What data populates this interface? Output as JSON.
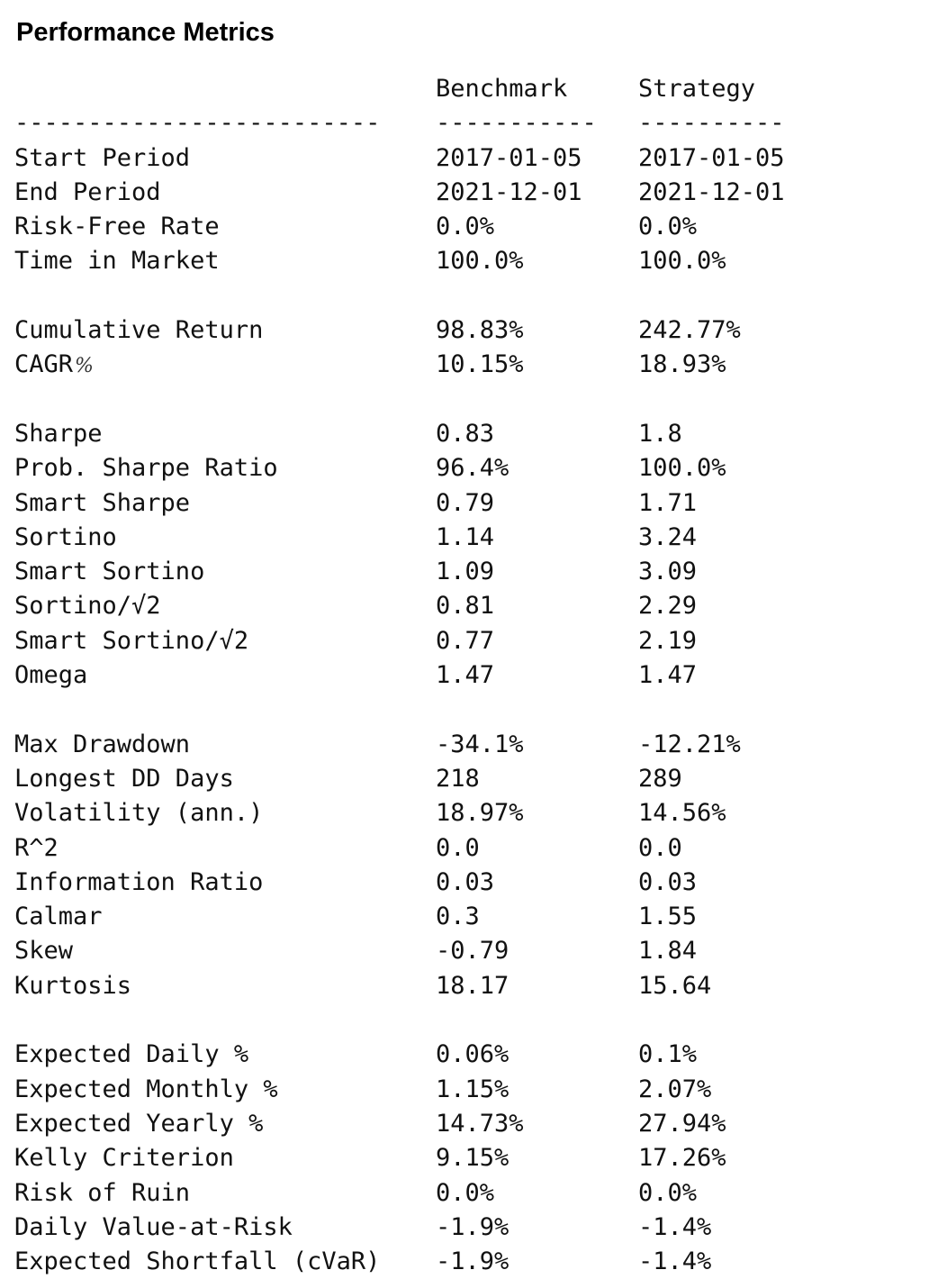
{
  "title": "Performance Metrics",
  "columns": {
    "benchmark": "Benchmark",
    "strategy": "Strategy"
  },
  "separator": {
    "metric": "-------------------------",
    "benchmark": "-----------",
    "strategy": "----------"
  },
  "rows": [
    {
      "metric": "Start Period",
      "benchmark": "2017-01-05",
      "strategy": "2017-01-05"
    },
    {
      "metric": "End Period",
      "benchmark": "2021-12-01",
      "strategy": "2021-12-01"
    },
    {
      "metric": "Risk-Free Rate",
      "benchmark": "0.0%",
      "strategy": "0.0%"
    },
    {
      "metric": "Time in Market",
      "benchmark": "100.0%",
      "strategy": "100.0%"
    },
    {
      "metric": "",
      "benchmark": "",
      "strategy": ""
    },
    {
      "metric": "Cumulative Return",
      "benchmark": "98.83%",
      "strategy": "242.77%"
    },
    {
      "metric": "CAGR",
      "suffix": "%",
      "benchmark": "10.15%",
      "strategy": "18.93%"
    },
    {
      "metric": "",
      "benchmark": "",
      "strategy": ""
    },
    {
      "metric": "Sharpe",
      "benchmark": "0.83",
      "strategy": "1.8"
    },
    {
      "metric": "Prob. Sharpe Ratio",
      "benchmark": "96.4%",
      "strategy": "100.0%"
    },
    {
      "metric": "Smart Sharpe",
      "benchmark": "0.79",
      "strategy": "1.71"
    },
    {
      "metric": "Sortino",
      "benchmark": "1.14",
      "strategy": "3.24"
    },
    {
      "metric": "Smart Sortino",
      "benchmark": "1.09",
      "strategy": "3.09"
    },
    {
      "metric": "Sortino/√2",
      "benchmark": "0.81",
      "strategy": "2.29"
    },
    {
      "metric": "Smart Sortino/√2",
      "benchmark": "0.77",
      "strategy": "2.19"
    },
    {
      "metric": "Omega",
      "benchmark": "1.47",
      "strategy": "1.47"
    },
    {
      "metric": "",
      "benchmark": "",
      "strategy": ""
    },
    {
      "metric": "Max Drawdown",
      "benchmark": "-34.1%",
      "strategy": "-12.21%"
    },
    {
      "metric": "Longest DD Days",
      "benchmark": "218",
      "strategy": "289"
    },
    {
      "metric": "Volatility (ann.)",
      "benchmark": "18.97%",
      "strategy": "14.56%"
    },
    {
      "metric": "R^2",
      "benchmark": "0.0",
      "strategy": "0.0"
    },
    {
      "metric": "Information Ratio",
      "benchmark": "0.03",
      "strategy": "0.03"
    },
    {
      "metric": "Calmar",
      "benchmark": "0.3",
      "strategy": "1.55"
    },
    {
      "metric": "Skew",
      "benchmark": "-0.79",
      "strategy": "1.84"
    },
    {
      "metric": "Kurtosis",
      "benchmark": "18.17",
      "strategy": "15.64"
    },
    {
      "metric": "",
      "benchmark": "",
      "strategy": ""
    },
    {
      "metric": "Expected Daily %",
      "benchmark": "0.06%",
      "strategy": "0.1%"
    },
    {
      "metric": "Expected Monthly %",
      "benchmark": "1.15%",
      "strategy": "2.07%"
    },
    {
      "metric": "Expected Yearly %",
      "benchmark": "14.73%",
      "strategy": "27.94%"
    },
    {
      "metric": "Kelly Criterion",
      "benchmark": "9.15%",
      "strategy": "17.26%"
    },
    {
      "metric": "Risk of Ruin",
      "benchmark": "0.0%",
      "strategy": "0.0%"
    },
    {
      "metric": "Daily Value-at-Risk",
      "benchmark": "-1.9%",
      "strategy": "-1.4%"
    },
    {
      "metric": "Expected Shortfall (cVaR)",
      "benchmark": "-1.9%",
      "strategy": "-1.4%"
    }
  ]
}
